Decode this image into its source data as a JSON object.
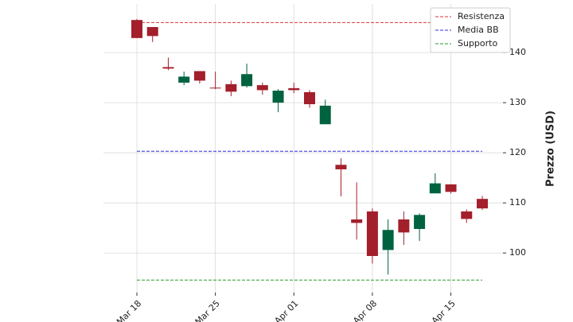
{
  "chart_data": {
    "type": "candlestick",
    "categories": [
      "Mar 18",
      null,
      null,
      null,
      null,
      "Mar 25",
      null,
      null,
      null,
      null,
      "Apr 01",
      null,
      null,
      null,
      null,
      "Apr 08",
      null,
      null,
      null,
      null,
      "Apr 15",
      null,
      null
    ],
    "open": [
      146.5,
      145.1,
      137.1,
      134.0,
      136.3,
      133.0,
      133.7,
      133.3,
      133.5,
      130.0,
      132.9,
      132.1,
      125.7,
      117.6,
      106.7,
      108.3,
      100.6,
      106.7,
      104.8,
      111.9,
      113.7,
      108.3,
      110.8
    ],
    "high": [
      146.7,
      145.1,
      139.0,
      136.2,
      136.3,
      136.2,
      134.4,
      137.8,
      134.0,
      132.7,
      134.0,
      132.5,
      130.6,
      118.9,
      114.1,
      108.9,
      106.7,
      108.3,
      107.9,
      115.9,
      113.7,
      108.7,
      111.4
    ],
    "low": [
      142.9,
      142.1,
      136.5,
      133.5,
      133.8,
      132.7,
      131.3,
      133.0,
      131.6,
      128.1,
      131.9,
      129.0,
      125.7,
      111.3,
      102.7,
      97.9,
      95.7,
      101.6,
      102.4,
      111.9,
      111.9,
      106.0,
      108.6
    ],
    "close": [
      142.9,
      143.3,
      136.8,
      135.2,
      134.4,
      132.9,
      132.2,
      135.7,
      132.5,
      132.4,
      132.5,
      129.7,
      129.4,
      116.7,
      106.0,
      99.4,
      104.6,
      104.1,
      107.6,
      113.9,
      112.2,
      106.8,
      108.9
    ],
    "up_color": "#006340",
    "down_color": "#a31f2b",
    "lines": [
      {
        "name": "Resistenza",
        "color": "#e0313a",
        "value": 146.0
      },
      {
        "name": "Media BB",
        "color": "#2f2fe6",
        "value": 120.3
      },
      {
        "name": "Supporto",
        "color": "#2a9a2a",
        "value": 94.6
      }
    ],
    "ylabel": "Prezzo (USD)",
    "ylim": [
      92.1,
      149.7
    ],
    "yticks": [
      100,
      110,
      120,
      130,
      140
    ],
    "grid": true,
    "legend": "upper right"
  }
}
